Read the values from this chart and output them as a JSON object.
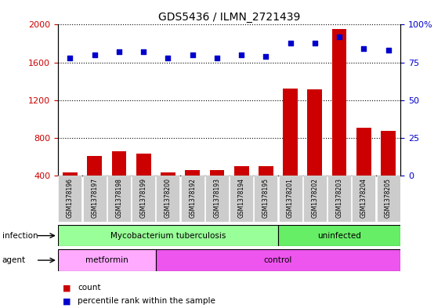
{
  "title": "GDS5436 / ILMN_2721439",
  "samples": [
    "GSM1378196",
    "GSM1378197",
    "GSM1378198",
    "GSM1378199",
    "GSM1378200",
    "GSM1378192",
    "GSM1378193",
    "GSM1378194",
    "GSM1378195",
    "GSM1378201",
    "GSM1378202",
    "GSM1378203",
    "GSM1378204",
    "GSM1378205"
  ],
  "counts": [
    430,
    610,
    660,
    630,
    430,
    460,
    460,
    500,
    500,
    1320,
    1310,
    1950,
    910,
    870
  ],
  "percentiles": [
    78,
    80,
    82,
    82,
    78,
    80,
    78,
    80,
    79,
    88,
    88,
    92,
    84,
    83
  ],
  "ylim_left": [
    400,
    2000
  ],
  "ylim_right": [
    0,
    100
  ],
  "yticks_left": [
    400,
    800,
    1200,
    1600,
    2000
  ],
  "yticks_right": [
    0,
    25,
    50,
    75,
    100
  ],
  "bar_color": "#cc0000",
  "dot_color": "#0000cc",
  "infection_labels": [
    {
      "label": "Mycobacterium tuberculosis",
      "start": 0,
      "end": 9,
      "color": "#99ff99"
    },
    {
      "label": "uninfected",
      "start": 9,
      "end": 14,
      "color": "#66ee66"
    }
  ],
  "agent_labels": [
    {
      "label": "metformin",
      "start": 0,
      "end": 4,
      "color": "#ffaaff"
    },
    {
      "label": "control",
      "start": 4,
      "end": 14,
      "color": "#ee55ee"
    }
  ],
  "bg_color": "#ffffff",
  "tick_label_bg": "#cccccc"
}
